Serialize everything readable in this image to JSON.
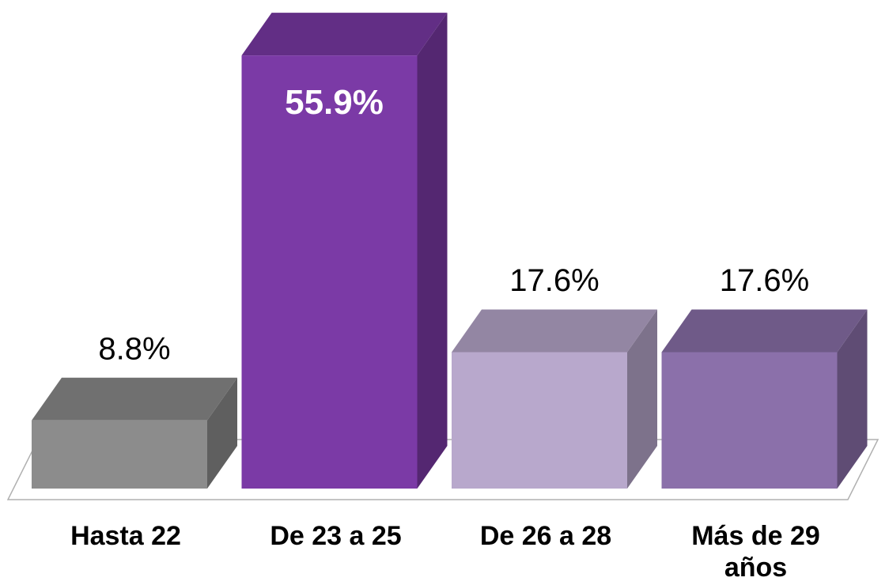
{
  "chart_data": {
    "type": "bar3d",
    "categories": [
      "Hasta 22",
      "De 23 a 25",
      "De 26 a 28",
      "Más de 29 años"
    ],
    "values": [
      8.8,
      55.9,
      17.6,
      17.6
    ],
    "value_labels": [
      "8.8%",
      "55.9%",
      "17.6%",
      "17.6%"
    ],
    "colors": [
      "#8c8c8c",
      "#7b3aa6",
      "#b8a8cc",
      "#8b70aa"
    ],
    "ylim": [
      0,
      60
    ]
  }
}
